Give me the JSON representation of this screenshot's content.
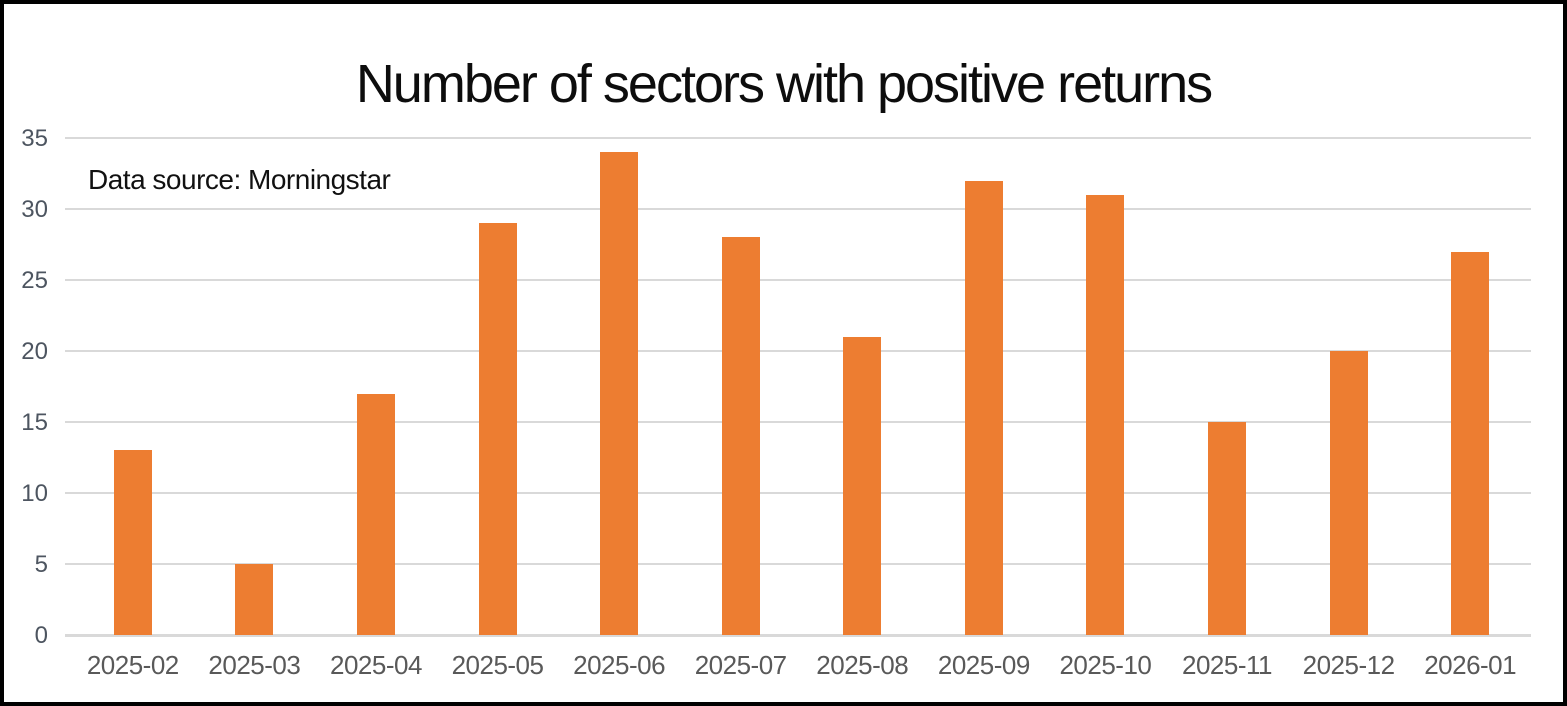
{
  "window": {
    "background_color": "#ffffff",
    "border_color": "#000000"
  },
  "chart_data": {
    "type": "bar",
    "title": "Number of sectors with positive returns",
    "annotation": "Data source: Morningstar",
    "categories": [
      "2025-02",
      "2025-03",
      "2025-04",
      "2025-05",
      "2025-06",
      "2025-07",
      "2025-08",
      "2025-09",
      "2025-10",
      "2025-11",
      "2025-12",
      "2026-01"
    ],
    "values": [
      13,
      5,
      17,
      29,
      34,
      28,
      21,
      32,
      31,
      15,
      20,
      27
    ],
    "xlabel": "",
    "ylabel": "",
    "ylim": [
      0,
      35
    ],
    "y_ticks": [
      0,
      5,
      10,
      15,
      20,
      25,
      30,
      35
    ],
    "grid": "horizontal",
    "legend_position": "none",
    "bar_color": "#ED7D31",
    "gridline_color": "#D9D9D9",
    "y_tick_color": "#4d5560",
    "x_tick_color": "#595959",
    "title_color": "#0d0d0d",
    "annotation_color": "#111111"
  }
}
